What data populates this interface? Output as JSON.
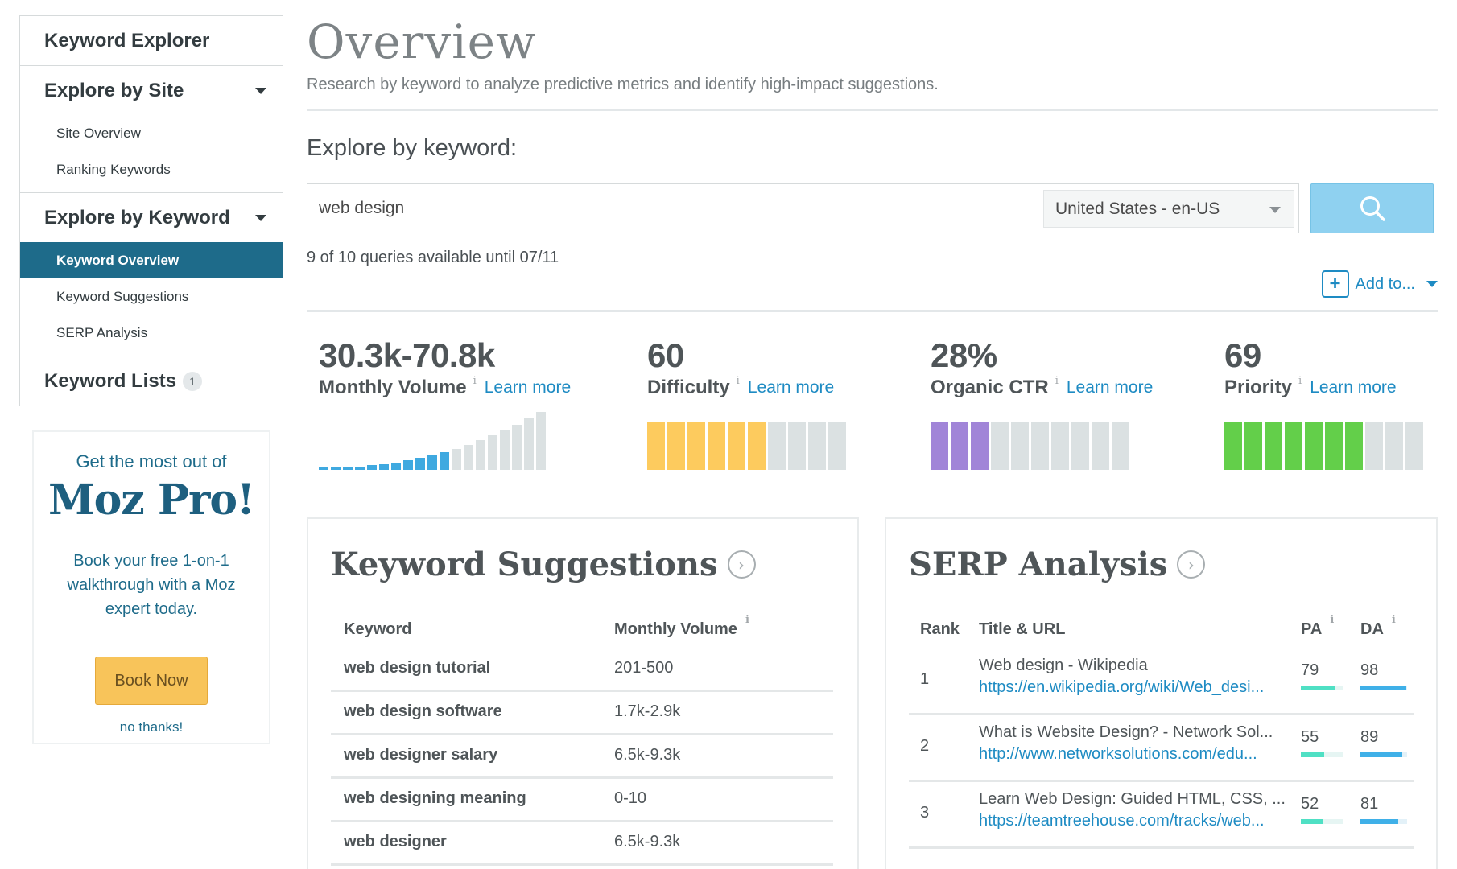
{
  "sidebar": {
    "keyword_explorer": "Keyword Explorer",
    "explore_by_site": {
      "label": "Explore by Site",
      "items": [
        "Site Overview",
        "Ranking Keywords"
      ]
    },
    "explore_by_keyword": {
      "label": "Explore by Keyword",
      "items": [
        "Keyword Overview",
        "Keyword Suggestions",
        "SERP Analysis"
      ],
      "active": "Keyword Overview"
    },
    "keyword_lists": {
      "label": "Keyword Lists",
      "count": "1"
    }
  },
  "promo": {
    "top_line": "Get the most out of",
    "brand": "Moz Pro!",
    "text": "Book your free 1-on-1 walkthrough with a Moz expert today.",
    "button": "Book Now",
    "dismiss": "no thanks!"
  },
  "header": {
    "title": "Overview",
    "subtitle": "Research by keyword to analyze predictive metrics and identify high-impact suggestions."
  },
  "search": {
    "label": "Explore by keyword:",
    "value": "web design",
    "locale": "United States - en-US",
    "quota": "9 of 10 queries available until 07/11",
    "add_to": "Add to..."
  },
  "metrics": {
    "learn_more": "Learn more",
    "info": "i",
    "volume": {
      "value": "30.3k-70.8k",
      "label": "Monthly Volume",
      "filled_bars": 11,
      "total_bars": 19
    },
    "difficulty": {
      "value": "60",
      "label": "Difficulty",
      "filled": 6,
      "total": 10,
      "color": "#fdcb5e"
    },
    "ctr": {
      "value": "28%",
      "label": "Organic CTR",
      "filled": 3,
      "total": 10,
      "color": "#a185d8"
    },
    "priority": {
      "value": "69",
      "label": "Priority",
      "filled": 7,
      "total": 10,
      "color": "#63cf4a"
    }
  },
  "colors": {
    "accent": "#1e8bc3",
    "active_nav": "#1e6b8a",
    "volume_bar": "#3fa9e0",
    "empty_bar": "#dbe1e2",
    "pa_bar": "#4fe0c4",
    "da_bar": "#3fb0e8"
  },
  "keyword_suggestions": {
    "title": "Keyword Suggestions",
    "col_keyword": "Keyword",
    "col_volume": "Monthly Volume",
    "rows": [
      {
        "keyword": "web design tutorial",
        "volume": "201-500"
      },
      {
        "keyword": "web design software",
        "volume": "1.7k-2.9k"
      },
      {
        "keyword": "web designer salary",
        "volume": "6.5k-9.3k"
      },
      {
        "keyword": "web designing meaning",
        "volume": "0-10"
      },
      {
        "keyword": "web designer",
        "volume": "6.5k-9.3k"
      }
    ]
  },
  "serp_analysis": {
    "title": "SERP Analysis",
    "col_rank": "Rank",
    "col_title": "Title & URL",
    "col_pa": "PA",
    "col_da": "DA",
    "rows": [
      {
        "rank": "1",
        "title": "Web design - Wikipedia",
        "url": "https://en.wikipedia.org/wiki/Web_desi...",
        "pa": "79",
        "da": "98"
      },
      {
        "rank": "2",
        "title": "What is Website Design? - Network Sol...",
        "url": "http://www.networksolutions.com/edu...",
        "pa": "55",
        "da": "89"
      },
      {
        "rank": "3",
        "title": "Learn Web Design: Guided HTML, CSS, ...",
        "url": "https://teamtreehouse.com/tracks/web...",
        "pa": "52",
        "da": "81"
      }
    ]
  }
}
